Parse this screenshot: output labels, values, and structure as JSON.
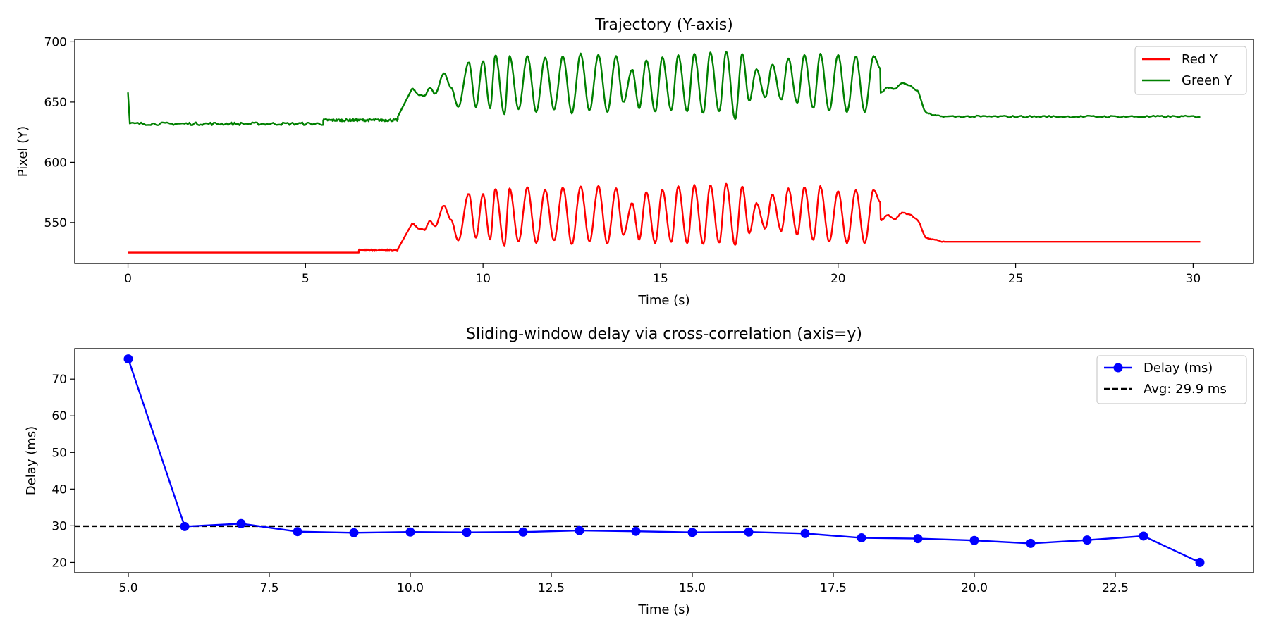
{
  "colors": {
    "red": "#ff0000",
    "green": "#008000",
    "blue": "#0000ff",
    "avg_line": "#000000",
    "background": "#ffffff"
  },
  "chart_data": [
    {
      "type": "line",
      "title": "Trajectory (Y-axis)",
      "xlabel": "Time (s)",
      "ylabel": "Pixel (Y)",
      "xlim": [
        -1.5,
        31.7
      ],
      "ylim": [
        516,
        702
      ],
      "xticks": [
        0,
        5,
        10,
        15,
        20,
        25,
        30
      ],
      "xtick_labels": [
        "0",
        "5",
        "10",
        "15",
        "20",
        "25",
        "30"
      ],
      "yticks": [
        550,
        600,
        650,
        700
      ],
      "ytick_labels": [
        "550",
        "600",
        "650",
        "700"
      ],
      "grid": false,
      "legend_position": "top-right",
      "series": [
        {
          "name": "Red Y",
          "color": "#ff0000",
          "segments": [
            {
              "kind": "flat",
              "x": [
                0.0,
                6.5
              ],
              "y": 525
            },
            {
              "kind": "flat",
              "x": [
                6.5,
                7.6
              ],
              "y": 527,
              "noise": 0.8
            },
            {
              "kind": "ramp",
              "x": [
                7.6,
                8.0
              ],
              "y": [
                528,
                549
              ]
            },
            {
              "kind": "wiggle",
              "x": [
                8.0,
                9.3
              ],
              "points": [
                [
                  8.0,
                  549
                ],
                [
                  8.2,
                  545
                ],
                [
                  8.35,
                  544
                ],
                [
                  8.5,
                  551
                ],
                [
                  8.65,
                  547
                ],
                [
                  8.9,
                  564
                ],
                [
                  9.1,
                  552
                ],
                [
                  9.3,
                  535
                ]
              ]
            },
            {
              "kind": "oscillation",
              "x": [
                9.3,
                21.2
              ],
              "peaks": [
                [
                  9.6,
                  574
                ],
                [
                  10.0,
                  574
                ],
                [
                  10.35,
                  578
                ],
                [
                  10.75,
                  578
                ],
                [
                  11.25,
                  579
                ],
                [
                  11.75,
                  577
                ],
                [
                  12.25,
                  579
                ],
                [
                  12.75,
                  580
                ],
                [
                  13.25,
                  580
                ],
                [
                  13.75,
                  578
                ],
                [
                  14.2,
                  566
                ],
                [
                  14.6,
                  575
                ],
                [
                  15.05,
                  577
                ],
                [
                  15.5,
                  580
                ],
                [
                  15.95,
                  581
                ],
                [
                  16.4,
                  581
                ],
                [
                  16.85,
                  582
                ],
                [
                  17.3,
                  580
                ],
                [
                  17.7,
                  566
                ],
                [
                  18.15,
                  573
                ],
                [
                  18.6,
                  578
                ],
                [
                  19.05,
                  579
                ],
                [
                  19.5,
                  580
                ],
                [
                  20.0,
                  576
                ],
                [
                  20.5,
                  577
                ],
                [
                  21.0,
                  577
                ]
              ],
              "troughs": [
                [
                  9.8,
                  537
                ],
                [
                  10.2,
                  536
                ],
                [
                  10.6,
                  531
                ],
                [
                  11.0,
                  534
                ],
                [
                  11.5,
                  533
                ],
                [
                  12.0,
                  535
                ],
                [
                  12.5,
                  532
                ],
                [
                  13.0,
                  534
                ],
                [
                  13.5,
                  533
                ],
                [
                  13.95,
                  540
                ],
                [
                  14.4,
                  536
                ],
                [
                  14.85,
                  533
                ],
                [
                  15.3,
                  534
                ],
                [
                  15.75,
                  533
                ],
                [
                  16.2,
                  532
                ],
                [
                  16.65,
                  533
                ],
                [
                  17.1,
                  531
                ],
                [
                  17.5,
                  541
                ],
                [
                  17.95,
                  545
                ],
                [
                  18.4,
                  543
                ],
                [
                  18.85,
                  540
                ],
                [
                  19.3,
                  536
                ],
                [
                  19.75,
                  534
                ],
                [
                  20.25,
                  533
                ],
                [
                  20.75,
                  533
                ]
              ]
            },
            {
              "kind": "wiggle",
              "x": [
                21.2,
                23.0
              ],
              "points": [
                [
                  21.2,
                  552
                ],
                [
                  21.4,
                  556
                ],
                [
                  21.6,
                  553
                ],
                [
                  21.8,
                  558
                ],
                [
                  22.0,
                  557
                ],
                [
                  22.2,
                  553
                ],
                [
                  22.5,
                  537
                ],
                [
                  22.7,
                  536
                ],
                [
                  23.0,
                  534
                ]
              ]
            },
            {
              "kind": "flat",
              "x": [
                23.0,
                30.2
              ],
              "y": 534
            }
          ]
        },
        {
          "name": "Green Y",
          "color": "#008000",
          "segments": [
            {
              "kind": "spike",
              "x": [
                0.0,
                0.05
              ],
              "y": [
                658,
                633
              ]
            },
            {
              "kind": "flat",
              "x": [
                0.05,
                5.5
              ],
              "y": 632,
              "noise": 1.2
            },
            {
              "kind": "flat",
              "x": [
                5.5,
                7.6
              ],
              "y": 635,
              "noise": 1.0
            },
            {
              "kind": "ramp",
              "x": [
                7.6,
                8.0
              ],
              "y": [
                638,
                661
              ]
            },
            {
              "kind": "wiggle",
              "x": [
                8.0,
                9.3
              ],
              "points": [
                [
                  8.0,
                  661
                ],
                [
                  8.2,
                  656
                ],
                [
                  8.35,
                  655
                ],
                [
                  8.5,
                  662
                ],
                [
                  8.65,
                  657
                ],
                [
                  8.9,
                  674
                ],
                [
                  9.1,
                  662
                ],
                [
                  9.3,
                  646
                ]
              ]
            },
            {
              "kind": "oscillation",
              "x": [
                9.3,
                21.2
              ],
              "peaks": [
                [
                  9.6,
                  683
                ],
                [
                  10.0,
                  684
                ],
                [
                  10.35,
                  689
                ],
                [
                  10.75,
                  688
                ],
                [
                  11.25,
                  688
                ],
                [
                  11.75,
                  687
                ],
                [
                  12.25,
                  688
                ],
                [
                  12.75,
                  690
                ],
                [
                  13.25,
                  689
                ],
                [
                  13.75,
                  688
                ],
                [
                  14.2,
                  677
                ],
                [
                  14.6,
                  685
                ],
                [
                  15.05,
                  687
                ],
                [
                  15.5,
                  689
                ],
                [
                  15.95,
                  690
                ],
                [
                  16.4,
                  691
                ],
                [
                  16.85,
                  692
                ],
                [
                  17.3,
                  690
                ],
                [
                  17.7,
                  677
                ],
                [
                  18.15,
                  681
                ],
                [
                  18.6,
                  686
                ],
                [
                  19.05,
                  689
                ],
                [
                  19.5,
                  690
                ],
                [
                  20.0,
                  689
                ],
                [
                  20.5,
                  688
                ],
                [
                  21.0,
                  688
                ]
              ],
              "troughs": [
                [
                  9.8,
                  646
                ],
                [
                  10.2,
                  645
                ],
                [
                  10.6,
                  640
                ],
                [
                  11.0,
                  644
                ],
                [
                  11.5,
                  642
                ],
                [
                  12.0,
                  644
                ],
                [
                  12.5,
                  641
                ],
                [
                  13.0,
                  643
                ],
                [
                  13.5,
                  642
                ],
                [
                  13.95,
                  650
                ],
                [
                  14.4,
                  645
                ],
                [
                  14.85,
                  642
                ],
                [
                  15.3,
                  643
                ],
                [
                  15.75,
                  642
                ],
                [
                  16.2,
                  641
                ],
                [
                  16.65,
                  642
                ],
                [
                  17.1,
                  636
                ],
                [
                  17.5,
                  651
                ],
                [
                  17.95,
                  654
                ],
                [
                  18.4,
                  652
                ],
                [
                  18.85,
                  649
                ],
                [
                  19.3,
                  645
                ],
                [
                  19.75,
                  643
                ],
                [
                  20.25,
                  642
                ],
                [
                  20.75,
                  642
                ]
              ]
            },
            {
              "kind": "wiggle",
              "x": [
                21.2,
                23.0
              ],
              "points": [
                [
                  21.2,
                  658
                ],
                [
                  21.4,
                  662
                ],
                [
                  21.6,
                  661
                ],
                [
                  21.8,
                  666
                ],
                [
                  22.0,
                  664
                ],
                [
                  22.2,
                  660
                ],
                [
                  22.5,
                  641
                ],
                [
                  22.7,
                  639
                ],
                [
                  23.0,
                  638
                ]
              ]
            },
            {
              "kind": "flat",
              "x": [
                23.0,
                30.2
              ],
              "y": 638,
              "noise": 0.8
            }
          ]
        }
      ]
    },
    {
      "type": "line",
      "title": "Sliding-window delay via cross-correlation (axis=y)",
      "xlabel": "Time (s)",
      "ylabel": "Delay (ms)",
      "xlim": [
        4.05,
        24.95
      ],
      "ylim": [
        17.2,
        78.3
      ],
      "xticks": [
        5.0,
        7.5,
        10.0,
        12.5,
        15.0,
        17.5,
        20.0,
        22.5
      ],
      "xtick_labels": [
        "5.0",
        "7.5",
        "10.0",
        "12.5",
        "15.0",
        "17.5",
        "20.0",
        "22.5"
      ],
      "yticks": [
        20,
        30,
        40,
        50,
        60,
        70
      ],
      "ytick_labels": [
        "20",
        "30",
        "40",
        "50",
        "60",
        "70"
      ],
      "grid": false,
      "legend_position": "top-right",
      "series": [
        {
          "name": "Delay (ms)",
          "color": "#0000ff",
          "marker": "circle",
          "x": [
            5,
            6,
            7,
            8,
            9,
            10,
            11,
            12,
            13,
            14,
            15,
            16,
            17,
            18,
            19,
            20,
            21,
            22,
            23,
            24
          ],
          "y": [
            75.5,
            29.8,
            30.6,
            28.4,
            28.1,
            28.3,
            28.2,
            28.3,
            28.7,
            28.5,
            28.2,
            28.3,
            27.9,
            26.7,
            26.5,
            26.0,
            25.2,
            26.1,
            27.2,
            20.0
          ]
        }
      ],
      "reference_lines": [
        {
          "name": "Avg: 29.9 ms",
          "y": 29.9,
          "style": "dashed",
          "color": "#000000"
        }
      ]
    }
  ]
}
